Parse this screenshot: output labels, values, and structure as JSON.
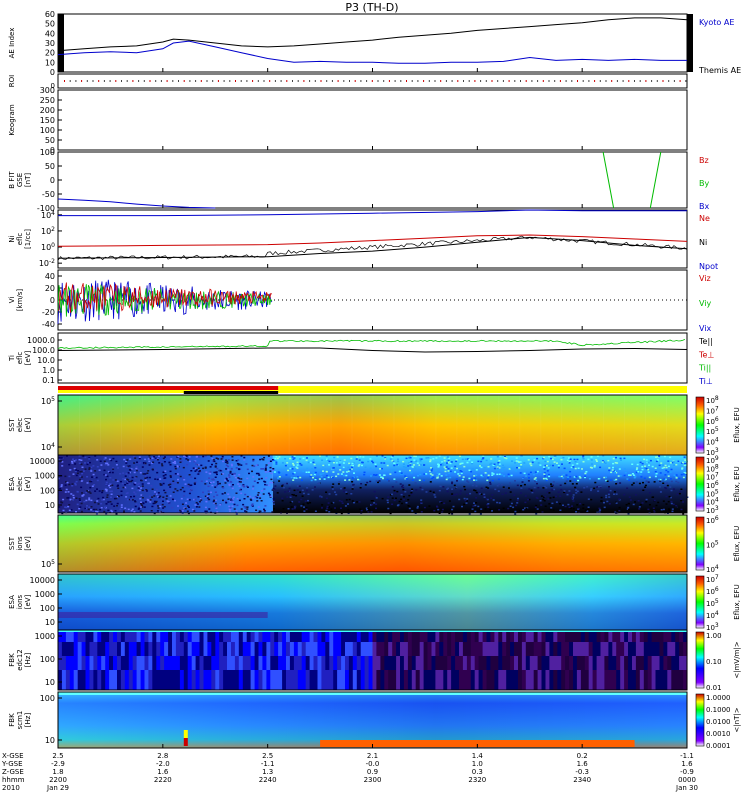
{
  "title": "P3 (TH-D)",
  "colors": {
    "kyoto": "#0000cc",
    "themis": "#000000",
    "bz": "#cc0000",
    "by": "#00bb00",
    "bx": "#0000cc",
    "ne": "#cc0000",
    "ni": "#000000",
    "npot": "#0000cc",
    "vx": "#cc0000",
    "vy": "#00bb00",
    "vz": "#0000cc",
    "te": "#cc0000",
    "ti": "#00bb00",
    "tperp": "#0000cc"
  },
  "chart_data": {
    "type": "line",
    "x_times": [
      "2200",
      "2220",
      "2240",
      "2300",
      "2320",
      "2340",
      "0000"
    ],
    "x_range_minutes": [
      0,
      120
    ],
    "footer_rows": [
      {
        "label": "X-GSE",
        "values": [
          "2.5",
          "2.8",
          "2.5",
          "2.1",
          "1.4",
          "0.2",
          "-1.1"
        ]
      },
      {
        "label": "Y-GSE",
        "values": [
          "-2.9",
          "-2.0",
          "-1.1",
          "-0.0",
          "1.0",
          "1.6",
          "1.6"
        ]
      },
      {
        "label": "Z-GSE",
        "values": [
          "1.8",
          "1.6",
          "1.3",
          "0.9",
          "0.3",
          "-0.3",
          "-0.9"
        ]
      },
      {
        "label": "hhmm",
        "values": [
          "2200",
          "2220",
          "2240",
          "2300",
          "2320",
          "2340",
          "0000"
        ]
      },
      {
        "label": "2010",
        "values": [
          "Jan 29",
          "",
          "",
          "",
          "",
          "",
          "Jan 30"
        ]
      }
    ],
    "panels": [
      {
        "id": "ae",
        "ylabel": "AE Index",
        "yticks": [
          "0",
          "10",
          "20",
          "30",
          "40",
          "50",
          "60"
        ],
        "ylim": [
          0,
          60
        ],
        "legend": [
          "Kyoto AE",
          "Themis AE"
        ],
        "series": [
          {
            "name": "Kyoto AE",
            "x": [
              0,
              5,
              10,
              15,
              20,
              22,
              25,
              30,
              35,
              40,
              45,
              50,
              55,
              60,
              65,
              70,
              75,
              80,
              85,
              90,
              95,
              100,
              105,
              110,
              115,
              120
            ],
            "y": [
              18,
              20,
              21,
              20,
              24,
              30,
              32,
              26,
              20,
              14,
              10,
              11,
              10,
              10,
              9,
              9,
              10,
              10,
              11,
              15,
              12,
              13,
              12,
              13,
              12,
              12
            ]
          },
          {
            "name": "Themis AE",
            "x": [
              0,
              5,
              10,
              15,
              20,
              22,
              25,
              30,
              35,
              40,
              45,
              50,
              55,
              60,
              65,
              70,
              75,
              80,
              85,
              90,
              95,
              100,
              105,
              110,
              115,
              120
            ],
            "y": [
              22,
              24,
              26,
              27,
              31,
              34,
              33,
              30,
              27,
              26,
              27,
              29,
              31,
              33,
              36,
              38,
              40,
              43,
              45,
              47,
              49,
              51,
              54,
              56,
              56,
              54
            ]
          }
        ]
      },
      {
        "id": "roi",
        "ylabel": "ROI",
        "yticks": [
          "0"
        ]
      },
      {
        "id": "keogram",
        "ylabel": "Keogram",
        "yticks": [
          "0",
          "50",
          "100",
          "150",
          "200",
          "250",
          "300"
        ],
        "ylim": [
          0,
          300
        ]
      },
      {
        "id": "bfit",
        "ylabel": "B FIT GSE [nT]",
        "yticks": [
          "-100",
          "-50",
          "0",
          "50",
          "100"
        ],
        "ylim": [
          -100,
          100
        ],
        "legend": [
          "Bz",
          "By",
          "Bx"
        ],
        "series": [
          {
            "name": "Bx",
            "x": [
              0,
              5,
              10,
              15,
              20,
              25,
              30
            ],
            "y": [
              -68,
              -72,
              -78,
              -86,
              -93,
              -98,
              -100
            ]
          },
          {
            "name": "By",
            "x": [
              104,
              106
            ],
            "y": [
              100,
              -100
            ]
          },
          {
            "name": "By",
            "x": [
              113,
              115
            ],
            "y": [
              -100,
              100
            ]
          }
        ]
      },
      {
        "id": "ni",
        "ylabel": "Ni eflc [1/cc]",
        "yticks": [
          "10^-2",
          "10^0",
          "10^2",
          "10^4"
        ],
        "ylim_log": [
          -2.6,
          4.6
        ],
        "legend": [
          "Ne",
          "Ni",
          "Npot"
        ],
        "series": [
          {
            "name": "Ne",
            "x": [
              0,
              20,
              40,
              50,
              60,
              70,
              80,
              90,
              100,
              110,
              120
            ],
            "y_log": [
              0.1,
              0.2,
              0.3,
              0.5,
              0.8,
              1.1,
              1.4,
              1.5,
              1.3,
              1.0,
              0.7
            ]
          },
          {
            "name": "Ni",
            "x": [
              0,
              20,
              40,
              50,
              60,
              70,
              80,
              90,
              100,
              110,
              120
            ],
            "y_log": [
              -1.4,
              -1.3,
              -1.2,
              -0.8,
              -0.5,
              0,
              0.6,
              1.2,
              0.8,
              0.2,
              -0.2
            ]
          },
          {
            "name": "Npot",
            "x": [
              0,
              20,
              40,
              60,
              80,
              90,
              100,
              110,
              120
            ],
            "y_log": [
              3.9,
              3.9,
              4.0,
              4.2,
              4.4,
              4.6,
              4.5,
              4.5,
              4.5
            ]
          }
        ]
      },
      {
        "id": "vi",
        "ylabel": "Vi [km/s]",
        "yticks": [
          "-40",
          "-20",
          "0",
          "20",
          "40"
        ],
        "ylim": [
          -50,
          50
        ],
        "legend": [
          "Viz",
          "Viy",
          "Vix"
        ]
      },
      {
        "id": "ti",
        "ylabel": "Ti eflc [eV]",
        "yticks": [
          "0.1",
          "1.0",
          "10.0",
          "100.0",
          "1000.0"
        ],
        "ylim_log": [
          -1.3,
          3.7
        ],
        "legend": [
          "Te||",
          "Te⊥",
          "Ti||",
          "Ti⊥"
        ],
        "series": [
          {
            "name": "Ti",
            "x": [
              0,
              20,
              40,
              41,
              60,
              80,
              95,
              100,
              110,
              120
            ],
            "y_log": [
              2.2,
              2.35,
              2.5,
              2.95,
              2.9,
              2.9,
              2.85,
              2.5,
              2.75,
              3.0
            ]
          },
          {
            "name": "Te",
            "x": [
              0,
              20,
              40,
              50,
              60,
              70,
              80,
              90,
              100,
              110,
              120
            ],
            "y_log": [
              1.95,
              2.05,
              2.2,
              2.2,
              1.95,
              1.8,
              1.85,
              1.95,
              2.1,
              2.15,
              2.05
            ]
          }
        ]
      },
      {
        "id": "sst_e",
        "ylabel": "SST elec [eV]",
        "yticks": [
          "10^4",
          "10^5"
        ],
        "zlabel": "Eflux, EFU",
        "zticks": [
          "10^3",
          "10^4",
          "10^5",
          "10^6",
          "10^7",
          "10^8"
        ]
      },
      {
        "id": "esa_e",
        "ylabel": "ESA elec [eV]",
        "yticks": [
          "10",
          "100",
          "1000",
          "10000"
        ],
        "zlabel": "Eflux, EFU",
        "zticks": [
          "10^3",
          "10^4",
          "10^5",
          "10^6",
          "10^7",
          "10^8",
          "10^9"
        ]
      },
      {
        "id": "sst_i",
        "ylabel": "SST ions [eV]",
        "yticks": [
          "10^5"
        ],
        "zlabel": "Eflux, EFU",
        "zticks": [
          "10^4",
          "10^5",
          "10^6"
        ]
      },
      {
        "id": "esa_i",
        "ylabel": "ESA ions [eV]",
        "yticks": [
          "10",
          "100",
          "1000",
          "10000"
        ],
        "zlabel": "Eflux, EFU",
        "zticks": [
          "10^3",
          "10^4",
          "10^5",
          "10^6",
          "10^7"
        ]
      },
      {
        "id": "fbk_e",
        "ylabel": "FBK edc12 [Hz]",
        "yticks": [
          "10",
          "100",
          "1000"
        ],
        "zlabel": "<|mV/m|>",
        "zticks": [
          "0.01",
          "0.10",
          "1.00"
        ]
      },
      {
        "id": "fbk_b",
        "ylabel": "FBK scm1 [Hz]",
        "yticks": [
          "10",
          "100"
        ],
        "zlabel": "<|nT|>",
        "zticks": [
          "0.0001",
          "0.0010",
          "0.0100",
          "0.1000",
          "1.0000"
        ]
      }
    ]
  }
}
